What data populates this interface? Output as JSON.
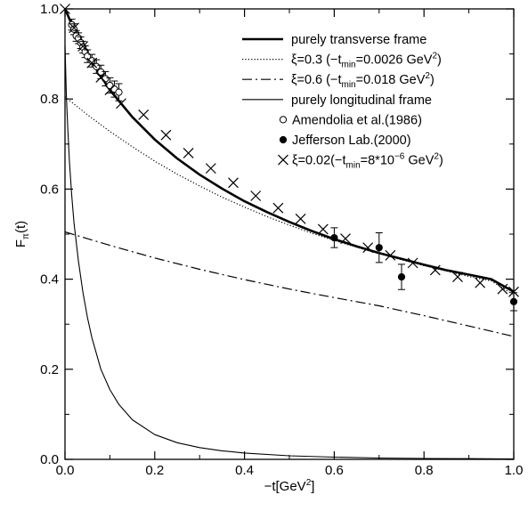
{
  "chart_data": {
    "type": "line",
    "xlabel": {
      "main": "−t[GeV",
      "sup": "2",
      "tail": "]"
    },
    "ylabel": {
      "main": "F",
      "sub": "π",
      "tail": "(t)"
    },
    "xlim": [
      0.0,
      1.0
    ],
    "ylim": [
      0.0,
      1.0
    ],
    "xticks": [
      "0.0",
      "0.2",
      "0.4",
      "0.6",
      "0.8",
      "1.0"
    ],
    "yticks": [
      "0.0",
      "0.2",
      "0.4",
      "0.6",
      "0.8",
      "1.0"
    ],
    "grid": false,
    "legend_position": "top-right",
    "series": [
      {
        "id": "transverse",
        "label": [
          {
            "t": "purely transverse frame"
          }
        ],
        "style": "solid-thick",
        "x": [
          0.0,
          0.02,
          0.05,
          0.1,
          0.15,
          0.2,
          0.25,
          0.3,
          0.35,
          0.4,
          0.45,
          0.5,
          0.55,
          0.6,
          0.65,
          0.7,
          0.75,
          0.8,
          0.85,
          0.9,
          0.95,
          1.0
        ],
        "y": [
          1.0,
          0.955,
          0.897,
          0.82,
          0.76,
          0.71,
          0.668,
          0.632,
          0.601,
          0.573,
          0.549,
          0.527,
          0.507,
          0.489,
          0.473,
          0.458,
          0.445,
          0.432,
          0.42,
          0.41,
          0.4,
          0.372
        ]
      },
      {
        "id": "xi03",
        "label": [
          {
            "t": "ξ=0.3 (−t"
          },
          {
            "t": "min",
            "sub": true
          },
          {
            "t": "=0.0026 GeV"
          },
          {
            "t": "2",
            "sup": true
          },
          {
            "t": ")"
          }
        ],
        "style": "dotted",
        "x": [
          0.0,
          0.05,
          0.1,
          0.15,
          0.2,
          0.25,
          0.3,
          0.35,
          0.4,
          0.45,
          0.5,
          0.55,
          0.6,
          0.65,
          0.7,
          0.75,
          0.8,
          0.85,
          0.9,
          0.95,
          1.0
        ],
        "y": [
          0.805,
          0.765,
          0.728,
          0.694,
          0.662,
          0.633,
          0.607,
          0.582,
          0.56,
          0.539,
          0.52,
          0.502,
          0.486,
          0.471,
          0.457,
          0.443,
          0.43,
          0.418,
          0.406,
          0.396,
          0.365
        ]
      },
      {
        "id": "xi06",
        "label": [
          {
            "t": "ξ=0.6 (−t"
          },
          {
            "t": "min",
            "sub": true
          },
          {
            "t": "=0.018 GeV"
          },
          {
            "t": "2",
            "sup": true
          },
          {
            "t": ")"
          }
        ],
        "style": "dashdot",
        "x": [
          0.0,
          0.1,
          0.2,
          0.3,
          0.4,
          0.5,
          0.6,
          0.7,
          0.8,
          0.9,
          1.0
        ],
        "y": [
          0.505,
          0.475,
          0.447,
          0.422,
          0.399,
          0.378,
          0.359,
          0.341,
          0.319,
          0.296,
          0.273
        ]
      },
      {
        "id": "longitudinal",
        "label": [
          {
            "t": "purely longitudinal frame"
          }
        ],
        "style": "solid-thin",
        "x": [
          0.0,
          0.003,
          0.006,
          0.01,
          0.015,
          0.02,
          0.03,
          0.04,
          0.05,
          0.06,
          0.08,
          0.1,
          0.12,
          0.15,
          0.2,
          0.25,
          0.3,
          0.35,
          0.4,
          0.5,
          0.6,
          0.7,
          0.8,
          0.9,
          1.0
        ],
        "y": [
          0.92,
          0.81,
          0.74,
          0.66,
          0.585,
          0.525,
          0.44,
          0.37,
          0.315,
          0.27,
          0.2,
          0.155,
          0.122,
          0.088,
          0.055,
          0.037,
          0.026,
          0.019,
          0.014,
          0.008,
          0.005,
          0.003,
          0.002,
          0.0015,
          0.001
        ]
      }
    ],
    "markers": [
      {
        "id": "amendolia",
        "label": [
          {
            "t": "Amendolia et al.(1986)"
          }
        ],
        "marker": "open-circle",
        "points": [
          {
            "x": 0.015,
            "y": 0.965,
            "err": 0.012
          },
          {
            "x": 0.02,
            "y": 0.955,
            "err": 0.012
          },
          {
            "x": 0.025,
            "y": 0.94,
            "err": 0.012
          },
          {
            "x": 0.03,
            "y": 0.935,
            "err": 0.012
          },
          {
            "x": 0.035,
            "y": 0.925,
            "err": 0.013
          },
          {
            "x": 0.04,
            "y": 0.915,
            "err": 0.013
          },
          {
            "x": 0.045,
            "y": 0.905,
            "err": 0.013
          },
          {
            "x": 0.05,
            "y": 0.895,
            "err": 0.014
          },
          {
            "x": 0.06,
            "y": 0.885,
            "err": 0.014
          },
          {
            "x": 0.07,
            "y": 0.872,
            "err": 0.015
          },
          {
            "x": 0.08,
            "y": 0.86,
            "err": 0.015
          },
          {
            "x": 0.09,
            "y": 0.845,
            "err": 0.016
          },
          {
            "x": 0.1,
            "y": 0.83,
            "err": 0.017
          },
          {
            "x": 0.11,
            "y": 0.822,
            "err": 0.018
          },
          {
            "x": 0.12,
            "y": 0.815,
            "err": 0.019
          }
        ]
      },
      {
        "id": "jlab",
        "label": [
          {
            "t": "Jefferson Lab.(2000)"
          }
        ],
        "marker": "filled-circle",
        "points": [
          {
            "x": 0.6,
            "y": 0.492,
            "err": 0.022
          },
          {
            "x": 0.7,
            "y": 0.47,
            "err": 0.033
          },
          {
            "x": 0.75,
            "y": 0.405,
            "err": 0.028
          },
          {
            "x": 1.0,
            "y": 0.35,
            "err": 0.02
          }
        ]
      },
      {
        "id": "xi002",
        "label": [
          {
            "t": "ξ=0.02(−t"
          },
          {
            "t": "min",
            "sub": true
          },
          {
            "t": "=8*10"
          },
          {
            "t": "−6",
            "sup": true
          },
          {
            "t": " GeV"
          },
          {
            "t": "2",
            "sup": true
          },
          {
            "t": ")"
          }
        ],
        "marker": "cross",
        "points": [
          {
            "x": 0.0,
            "y": 1.0
          },
          {
            "x": 0.02,
            "y": 0.958
          },
          {
            "x": 0.04,
            "y": 0.917
          },
          {
            "x": 0.06,
            "y": 0.88
          },
          {
            "x": 0.08,
            "y": 0.848
          },
          {
            "x": 0.1,
            "y": 0.82
          },
          {
            "x": 0.125,
            "y": 0.79
          },
          {
            "x": 0.175,
            "y": 0.765
          },
          {
            "x": 0.225,
            "y": 0.72
          },
          {
            "x": 0.275,
            "y": 0.68
          },
          {
            "x": 0.325,
            "y": 0.646
          },
          {
            "x": 0.375,
            "y": 0.614
          },
          {
            "x": 0.425,
            "y": 0.585
          },
          {
            "x": 0.475,
            "y": 0.558
          },
          {
            "x": 0.525,
            "y": 0.534
          },
          {
            "x": 0.575,
            "y": 0.511
          },
          {
            "x": 0.625,
            "y": 0.49
          },
          {
            "x": 0.675,
            "y": 0.47
          },
          {
            "x": 0.725,
            "y": 0.453
          },
          {
            "x": 0.775,
            "y": 0.436
          },
          {
            "x": 0.825,
            "y": 0.42
          },
          {
            "x": 0.875,
            "y": 0.405
          },
          {
            "x": 0.925,
            "y": 0.392
          },
          {
            "x": 0.975,
            "y": 0.378
          },
          {
            "x": 1.0,
            "y": 0.372
          }
        ]
      }
    ],
    "legend_order": [
      "transverse",
      "xi03",
      "xi06",
      "longitudinal",
      "amendolia",
      "jlab",
      "xi002"
    ]
  }
}
